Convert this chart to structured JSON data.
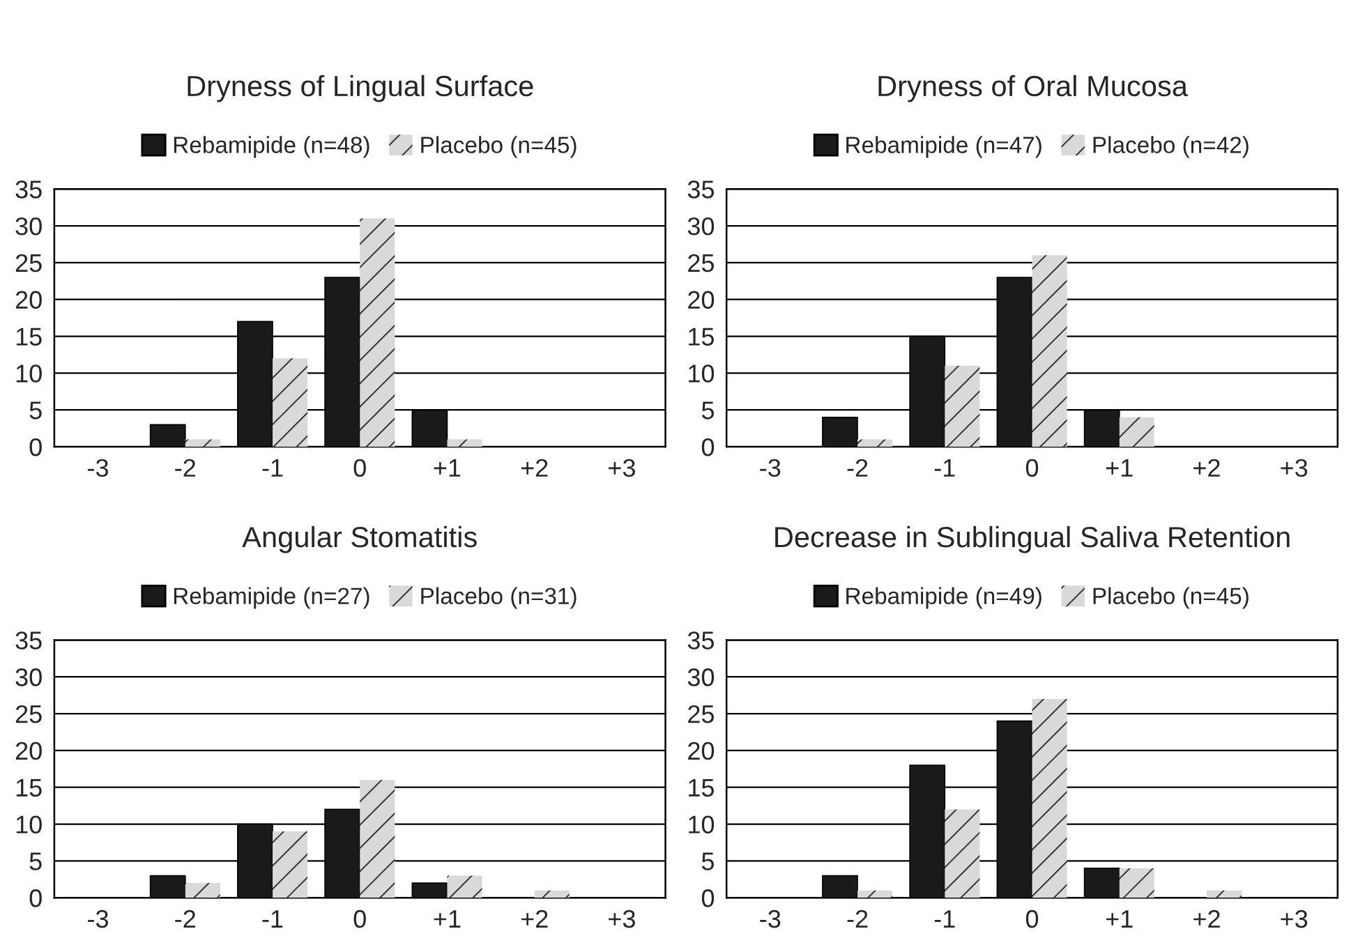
{
  "chart_data": [
    {
      "type": "bar",
      "title": "Dryness of Lingual Surface",
      "categories": [
        "-3",
        "-2",
        "-1",
        "0",
        "+1",
        "+2",
        "+3"
      ],
      "series": [
        {
          "name": "Rebamipide (n=48)",
          "color": "#1a1a1a",
          "values": [
            0,
            3,
            17,
            23,
            5,
            0,
            0
          ]
        },
        {
          "name": "Placebo (n=45)",
          "color": "#d9d9d9",
          "values": [
            0,
            1,
            12,
            31,
            1,
            0,
            0
          ]
        }
      ],
      "ylim": [
        0,
        35
      ],
      "yticks": [
        0,
        5,
        10,
        15,
        20,
        25,
        30,
        35
      ],
      "grid": "y",
      "legend": "top"
    },
    {
      "type": "bar",
      "title": "Dryness of Oral Mucosa",
      "categories": [
        "-3",
        "-2",
        "-1",
        "0",
        "+1",
        "+2",
        "+3"
      ],
      "series": [
        {
          "name": "Rebamipide (n=47)",
          "color": "#1a1a1a",
          "values": [
            0,
            4,
            15,
            23,
            5,
            0,
            0
          ]
        },
        {
          "name": "Placebo (n=42)",
          "color": "#d9d9d9",
          "values": [
            0,
            1,
            11,
            26,
            4,
            0,
            0
          ]
        }
      ],
      "ylim": [
        0,
        35
      ],
      "yticks": [
        0,
        5,
        10,
        15,
        20,
        25,
        30,
        35
      ],
      "grid": "y",
      "legend": "top"
    },
    {
      "type": "bar",
      "title": "Angular Stomatitis",
      "categories": [
        "-3",
        "-2",
        "-1",
        "0",
        "+1",
        "+2",
        "+3"
      ],
      "series": [
        {
          "name": "Rebamipide (n=27)",
          "color": "#1a1a1a",
          "values": [
            0,
            3,
            10,
            12,
            2,
            0,
            0
          ]
        },
        {
          "name": "Placebo (n=31)",
          "color": "#d9d9d9",
          "values": [
            0,
            2,
            9,
            16,
            3,
            1,
            0
          ]
        }
      ],
      "ylim": [
        0,
        35
      ],
      "yticks": [
        0,
        5,
        10,
        15,
        20,
        25,
        30,
        35
      ],
      "grid": "y",
      "legend": "top"
    },
    {
      "type": "bar",
      "title": "Decrease in Sublingual Saliva Retention",
      "categories": [
        "-3",
        "-2",
        "-1",
        "0",
        "+1",
        "+2",
        "+3"
      ],
      "series": [
        {
          "name": "Rebamipide (n=49)",
          "color": "#1a1a1a",
          "values": [
            0,
            3,
            18,
            24,
            4,
            0,
            0
          ]
        },
        {
          "name": "Placebo (n=45)",
          "color": "#d9d9d9",
          "values": [
            0,
            1,
            12,
            27,
            4,
            1,
            0
          ]
        }
      ],
      "ylim": [
        0,
        35
      ],
      "yticks": [
        0,
        5,
        10,
        15,
        20,
        25,
        30,
        35
      ],
      "grid": "y",
      "legend": "top"
    }
  ]
}
